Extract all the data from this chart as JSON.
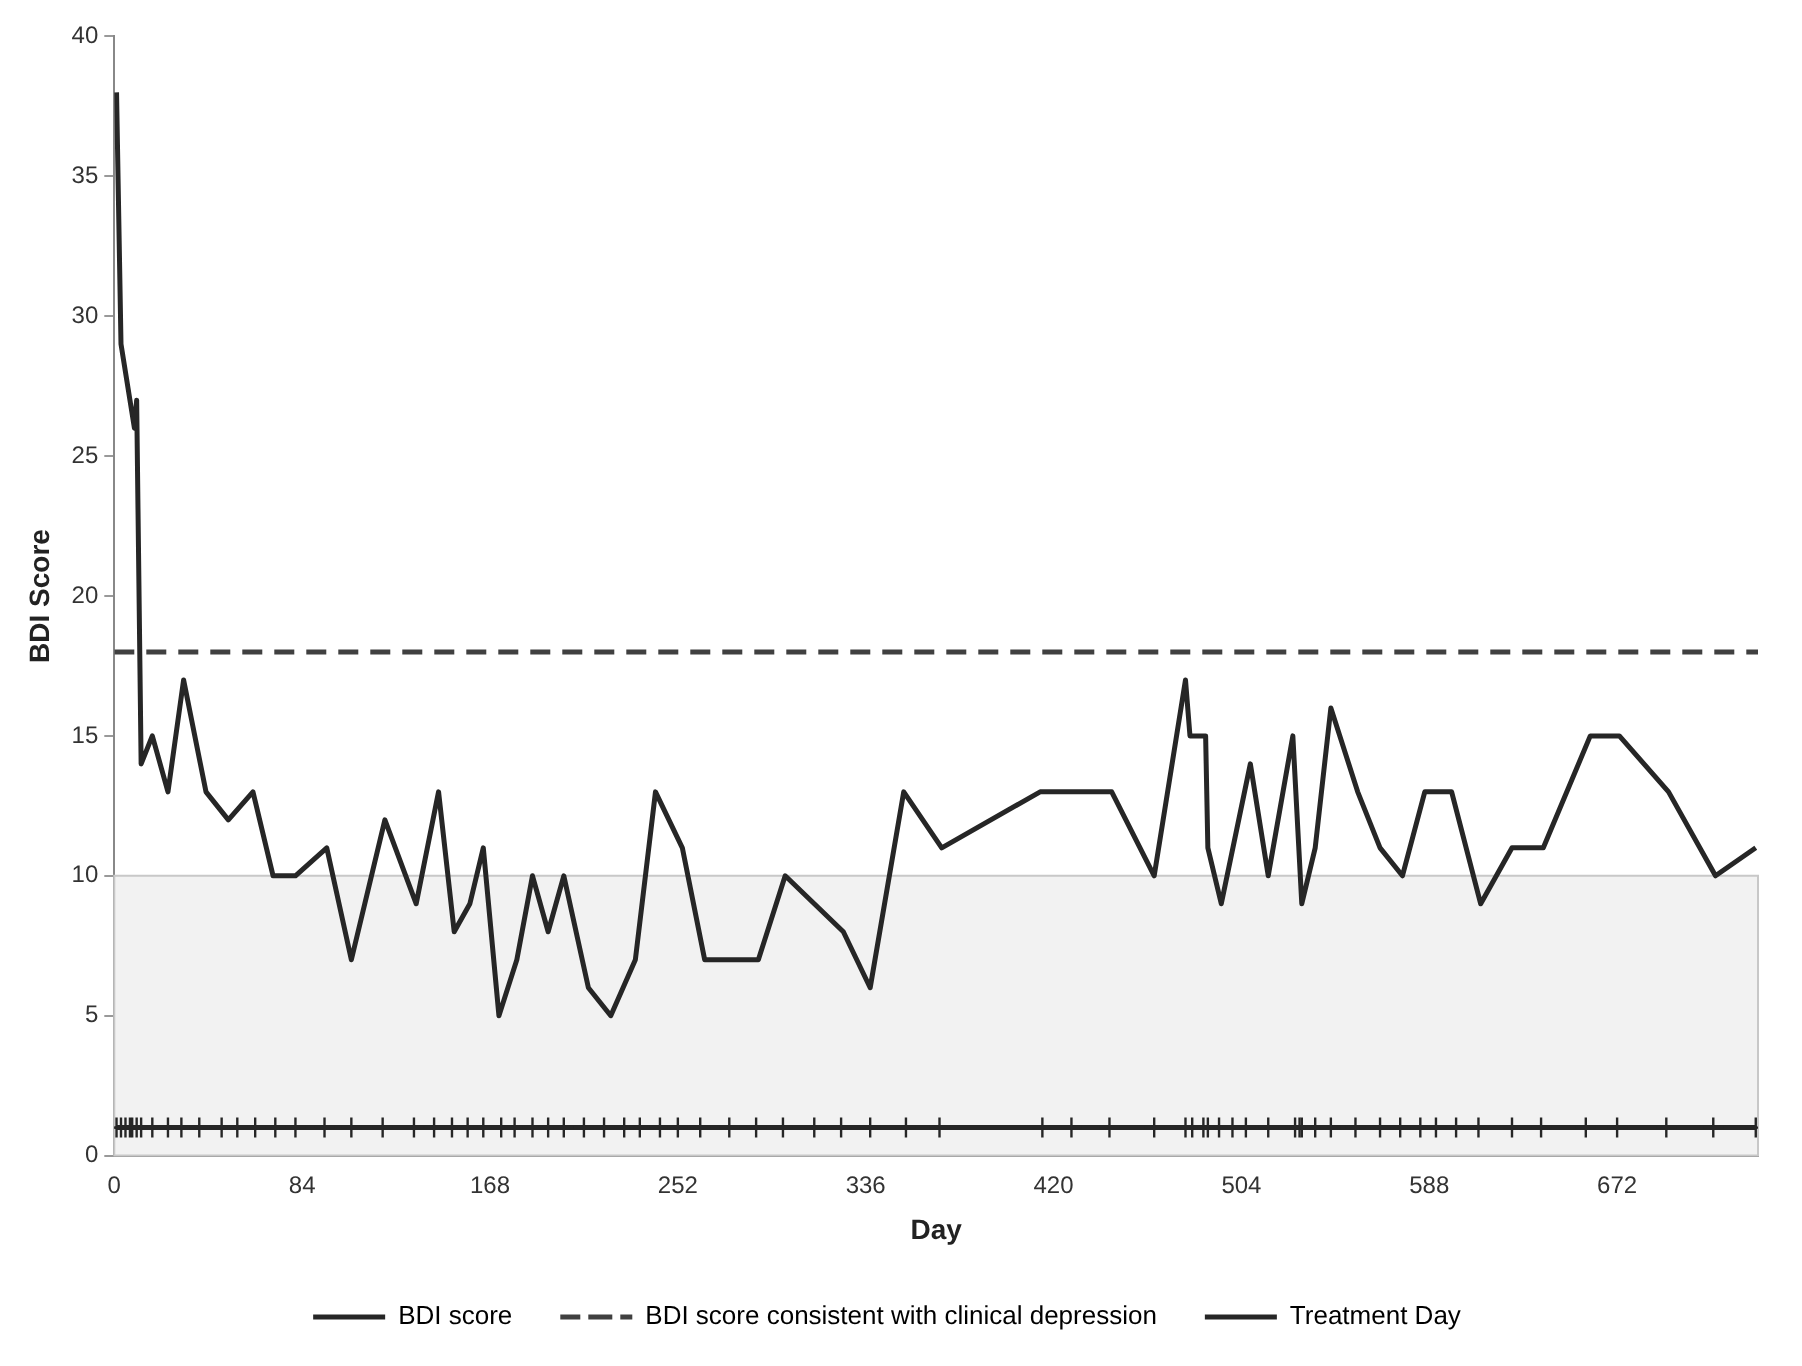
{
  "chart_data": {
    "type": "line",
    "xlabel": "Day",
    "ylabel": "BDI Score",
    "xlim": [
      0,
      735
    ],
    "xticks": [
      0,
      84,
      168,
      252,
      336,
      420,
      504,
      588,
      672
    ],
    "ylim": [
      0,
      40
    ],
    "yticks": [
      0,
      5,
      10,
      15,
      20,
      25,
      30,
      35,
      40
    ],
    "grid": false,
    "legend": "bottom",
    "bands": [
      {
        "axis": "y",
        "from": 0,
        "to": 10,
        "color": "#f2f2f2"
      }
    ],
    "series": [
      {
        "name": "BDI score",
        "color": "#262626",
        "line_style": "solid",
        "marker": "none",
        "x": [
          1,
          3,
          7,
          9,
          10,
          12,
          17,
          24,
          31,
          41,
          51,
          62,
          71,
          81,
          95,
          106,
          121,
          135,
          145,
          152,
          159,
          165,
          172,
          180,
          187,
          194,
          201,
          212,
          222,
          233,
          242,
          254,
          264,
          288,
          300,
          313,
          326,
          338,
          353,
          370,
          414,
          446,
          465,
          479,
          481,
          488,
          489,
          495,
          508,
          516,
          527,
          531,
          537,
          544,
          556,
          566,
          576,
          586,
          598,
          611,
          625,
          639,
          660,
          673,
          695,
          716,
          734
        ],
        "values": [
          38,
          29,
          27,
          26,
          27,
          14,
          15,
          13,
          17,
          13,
          12,
          13,
          10,
          10,
          11,
          7,
          12,
          9,
          13,
          8,
          9,
          11,
          5,
          7,
          10,
          8,
          10,
          6,
          5,
          7,
          13,
          11,
          7,
          7,
          10,
          9,
          8,
          6,
          13,
          11,
          13,
          13,
          10,
          17,
          15,
          15,
          11,
          9,
          14,
          10,
          15,
          9,
          11,
          16,
          13,
          11,
          10,
          13,
          13,
          9,
          11,
          11,
          15,
          15,
          13,
          10,
          11
        ]
      },
      {
        "name": "BDI score consistent with clinical depression",
        "color": "#404040",
        "line_style": "dashed",
        "marker": "none",
        "x": [
          0,
          735
        ],
        "values": [
          18,
          18
        ]
      },
      {
        "name": "Treatment Day",
        "color": "#262626",
        "line_style": "solid",
        "marker": "cross",
        "x": [
          1,
          3,
          5,
          7,
          8,
          10,
          12,
          17,
          24,
          30,
          38,
          48,
          55,
          63,
          72,
          81,
          94,
          106,
          120,
          134,
          143,
          151,
          158,
          165,
          173,
          179,
          187,
          194,
          201,
          210,
          219,
          228,
          235,
          244,
          252,
          262,
          275,
          287,
          299,
          313,
          325,
          338,
          354,
          369,
          415,
          428,
          445,
          465,
          479,
          482,
          487,
          489,
          494,
          500,
          506,
          516,
          528,
          530,
          531,
          537,
          544,
          555,
          566,
          575,
          584,
          591,
          600,
          610,
          625,
          638,
          658,
          672,
          694,
          715,
          734
        ],
        "values": [
          1,
          1,
          1,
          1,
          1,
          1,
          1,
          1,
          1,
          1,
          1,
          1,
          1,
          1,
          1,
          1,
          1,
          1,
          1,
          1,
          1,
          1,
          1,
          1,
          1,
          1,
          1,
          1,
          1,
          1,
          1,
          1,
          1,
          1,
          1,
          1,
          1,
          1,
          1,
          1,
          1,
          1,
          1,
          1,
          1,
          1,
          1,
          1,
          1,
          1,
          1,
          1,
          1,
          1,
          1,
          1,
          1,
          1,
          1,
          1,
          1,
          1,
          1,
          1,
          1,
          1,
          1,
          1,
          1,
          1,
          1,
          1,
          1,
          1,
          1
        ]
      }
    ]
  }
}
